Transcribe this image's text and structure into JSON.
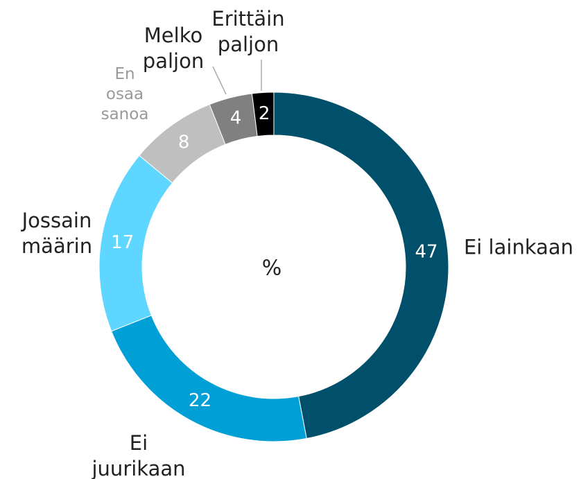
{
  "chart_data": {
    "type": "donut",
    "center_label": "%",
    "categories": [
      "Ei lainkaan",
      "Ei juurikaan",
      "Jossain määrin",
      "En osaa sanoa",
      "Melko paljon",
      "Erittäin paljon"
    ],
    "values": [
      47,
      22,
      17,
      8,
      4,
      2
    ],
    "colors": [
      "#004f6b",
      "#009fd6",
      "#5fd6ff",
      "#bfbfbf",
      "#808080",
      "#000000"
    ]
  }
}
